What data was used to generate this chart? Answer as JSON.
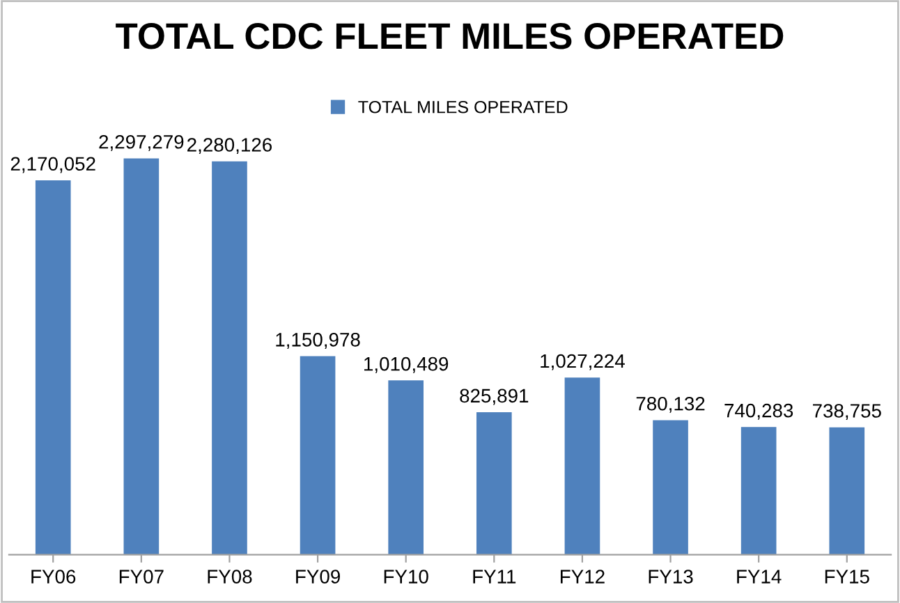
{
  "chart_data": {
    "type": "bar",
    "title": "TOTAL CDC FLEET MILES OPERATED",
    "categories": [
      "FY06",
      "FY07",
      "FY08",
      "FY09",
      "FY10",
      "FY11",
      "FY12",
      "FY13",
      "FY14",
      "FY15"
    ],
    "series": [
      {
        "name": "TOTAL MILES OPERATED",
        "color": "#4f81bd",
        "values": [
          2170052,
          2297279,
          2280126,
          1150978,
          1010489,
          825891,
          1027224,
          780132,
          740283,
          738755
        ],
        "value_labels": [
          "2,170,052",
          "2,297,279",
          "2,280,126",
          "1,150,978",
          "1,010,489",
          "825,891",
          "1,027,224",
          "780,132",
          "740,283",
          "738,755"
        ]
      }
    ],
    "legend": "top",
    "grid": false
  }
}
